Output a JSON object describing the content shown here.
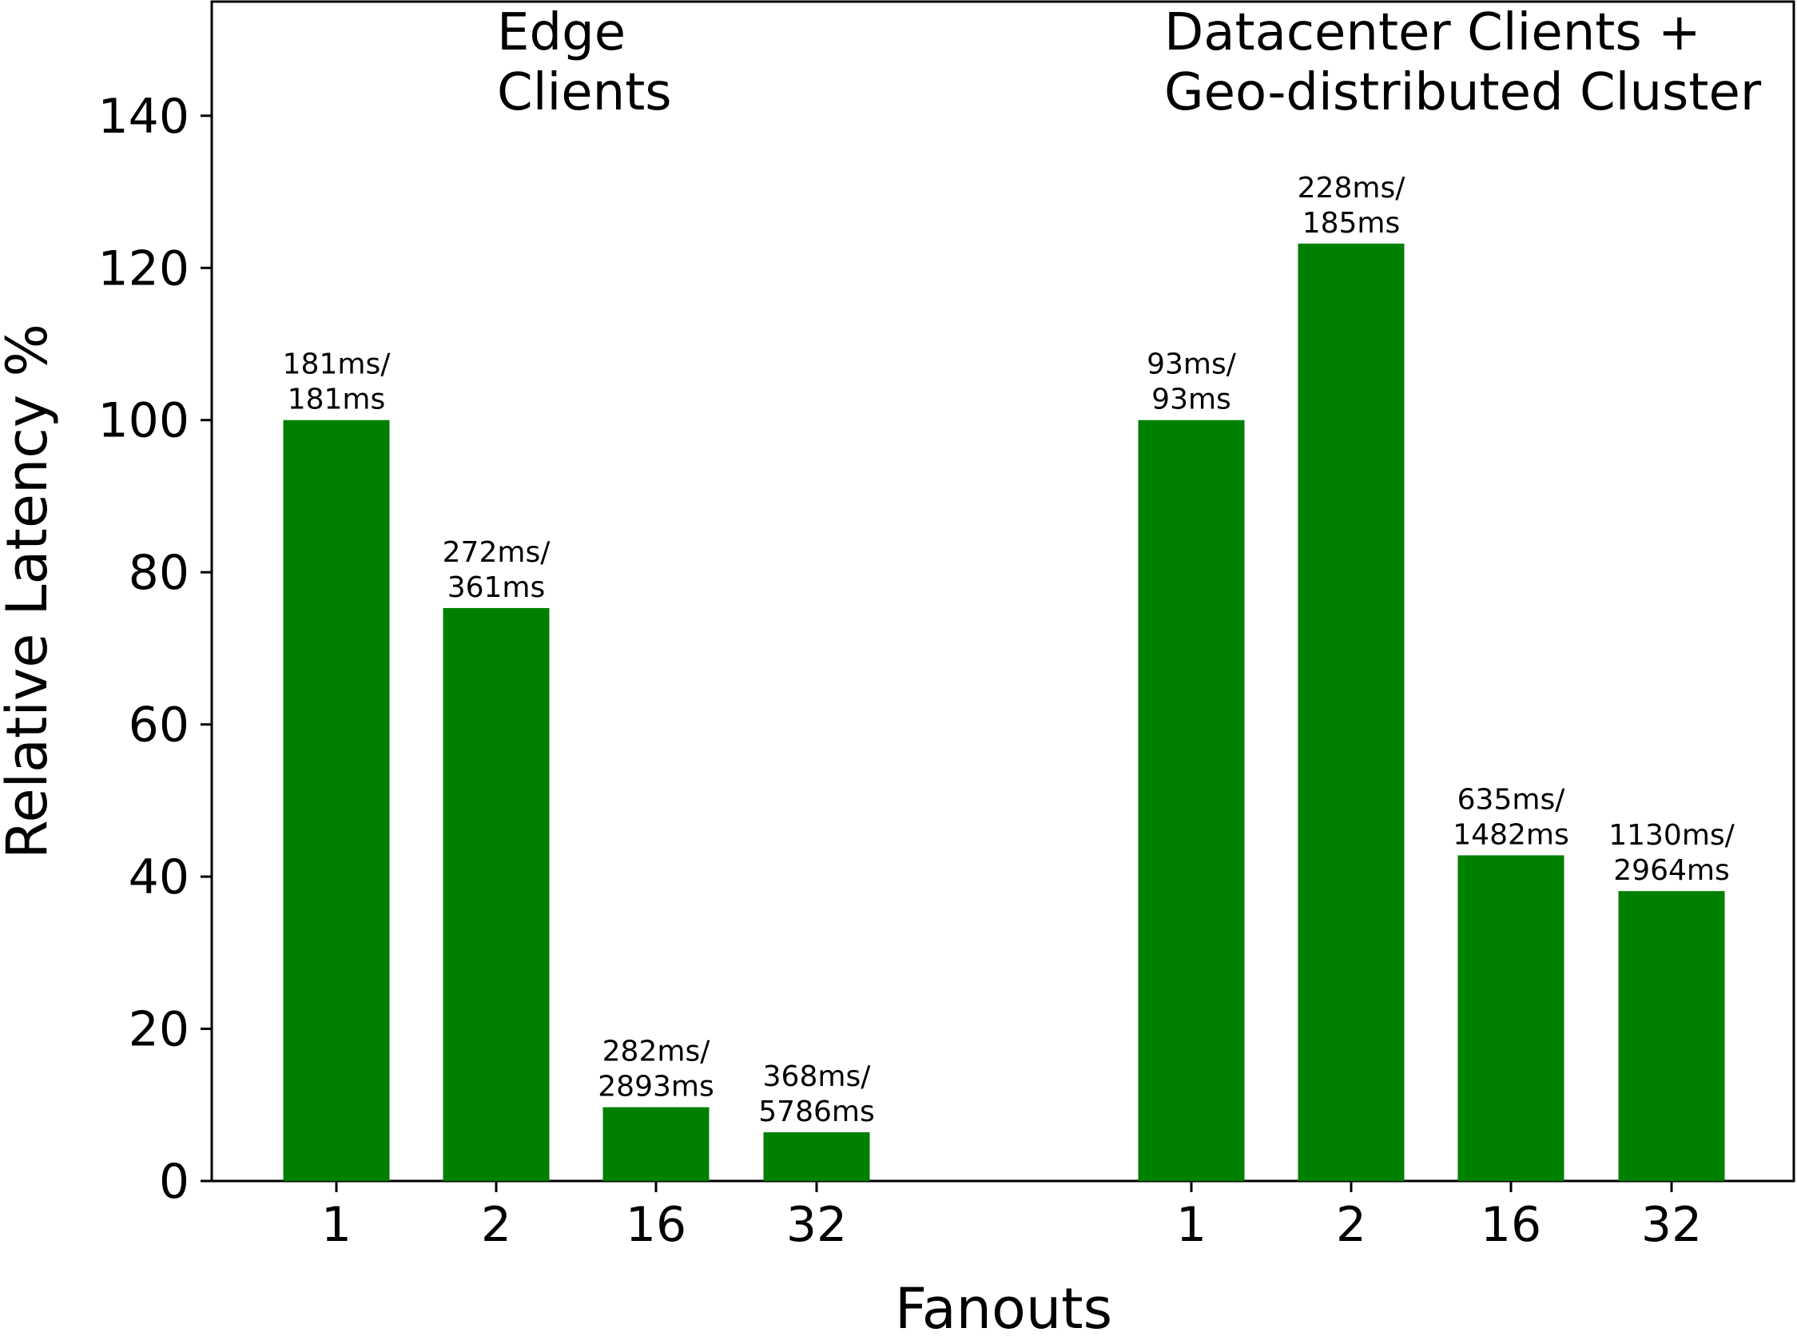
{
  "chart_data": {
    "type": "bar",
    "xlabel": "Fanouts",
    "ylabel": "Relative Latency %",
    "ylim": [
      0,
      155
    ],
    "yticks": [
      0,
      20,
      40,
      60,
      80,
      100,
      120,
      140
    ],
    "bar_color": "#008000",
    "grid": false,
    "groups": [
      {
        "title_lines": [
          "Edge",
          "Clients"
        ],
        "categories": [
          "1",
          "2",
          "16",
          "32"
        ],
        "values": [
          100,
          75.3,
          9.7,
          6.4
        ],
        "labels": [
          [
            "181ms/",
            "181ms"
          ],
          [
            "272ms/",
            "361ms"
          ],
          [
            "282ms/",
            "2893ms"
          ],
          [
            "368ms/",
            "5786ms"
          ]
        ]
      },
      {
        "title_lines": [
          "Datacenter Clients +",
          "Geo-distributed Cluster"
        ],
        "categories": [
          "1",
          "2",
          "16",
          "32"
        ],
        "values": [
          100,
          123.2,
          42.8,
          38.1
        ],
        "labels": [
          [
            "93ms/",
            "93ms"
          ],
          [
            "228ms/",
            "185ms"
          ],
          [
            "635ms/",
            "1482ms"
          ],
          [
            "1130ms/",
            "2964ms"
          ]
        ]
      }
    ]
  }
}
